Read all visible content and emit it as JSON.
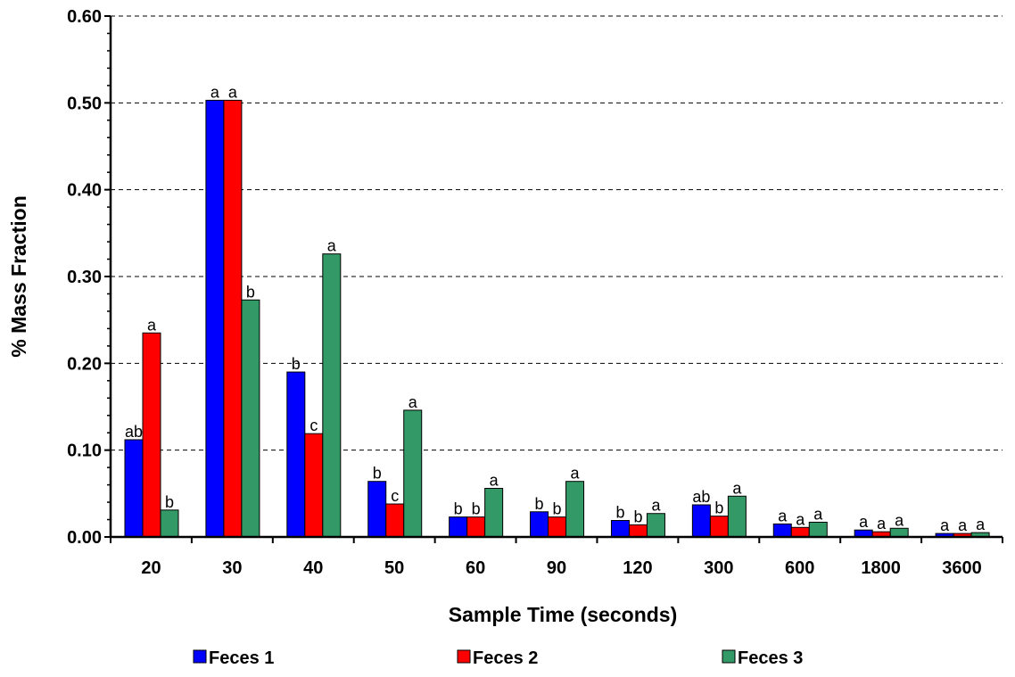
{
  "chart_data": {
    "type": "bar",
    "title": "",
    "xlabel": "Sample Time (seconds)",
    "ylabel": "% Mass Fraction",
    "ylim": [
      0,
      0.6
    ],
    "yticks": [
      "0.00",
      "0.10",
      "0.20",
      "0.30",
      "0.40",
      "0.50",
      "0.60"
    ],
    "grid": "horizontal dashed",
    "legend_position": "bottom",
    "categories": [
      "20",
      "30",
      "40",
      "50",
      "60",
      "90",
      "120",
      "300",
      "600",
      "1800",
      "3600"
    ],
    "series": [
      {
        "name": "Feces 1",
        "color": "#0000ff",
        "values": [
          0.112,
          0.503,
          0.19,
          0.064,
          0.023,
          0.029,
          0.019,
          0.037,
          0.015,
          0.008,
          0.004
        ],
        "labels": [
          "ab",
          "a",
          "b",
          "b",
          "b",
          "b",
          "b",
          "ab",
          "a",
          "a",
          "a"
        ]
      },
      {
        "name": "Feces 2",
        "color": "#ff0000",
        "values": [
          0.235,
          0.503,
          0.119,
          0.038,
          0.023,
          0.023,
          0.014,
          0.024,
          0.011,
          0.006,
          0.004
        ],
        "labels": [
          "a",
          "a",
          "c",
          "c",
          "b",
          "b",
          "b",
          "b",
          "a",
          "a",
          "a"
        ]
      },
      {
        "name": "Feces 3",
        "color": "#339966",
        "values": [
          0.031,
          0.273,
          0.326,
          0.146,
          0.056,
          0.064,
          0.027,
          0.047,
          0.017,
          0.01,
          0.005
        ],
        "labels": [
          "b",
          "b",
          "a",
          "a",
          "a",
          "a",
          "a",
          "a",
          "a",
          "a",
          "a"
        ]
      }
    ]
  }
}
